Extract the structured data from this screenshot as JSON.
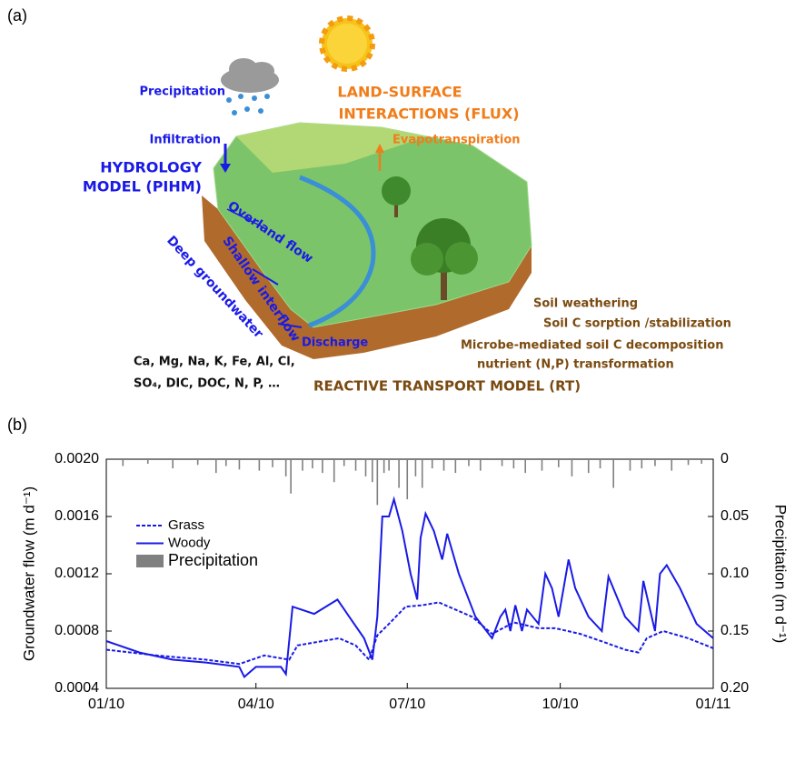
{
  "panel_a": {
    "label": "(a)",
    "precipitation": "Precipitation",
    "infiltration": "Infiltration",
    "hydrology": [
      "HYDROLOGY",
      "MODEL (PIHM)"
    ],
    "land_surface": [
      "LAND-SURFACE",
      "INTERACTIONS (FLUX)"
    ],
    "evapotranspiration": "Evapotranspiration",
    "overland_flow": "Overland flow",
    "shallow_interflow": "Shallow interflow",
    "deep_groundwater": "Deep groundwater",
    "discharge": "Discharge",
    "solutes": [
      "Ca, Mg, Na, K, Fe, Al, Cl,",
      "SO₄, DIC, DOC, N, P, …"
    ],
    "processes": [
      "Soil weathering",
      "Soil C sorption /stabilization",
      "Microbe-mediated soil C decomposition",
      "nutrient (N,P) transformation"
    ],
    "reactive_transport": "REACTIVE TRANSPORT MODEL (RT)"
  },
  "chart_data": {
    "type": "line",
    "panel_label": "(b)",
    "y_label": "Groundwater flow (m d⁻¹)",
    "y2_label": "Precipitation (m d⁻¹)",
    "xlim": [
      0,
      365
    ],
    "xticks": [
      {
        "value": 0,
        "label": "01/10"
      },
      {
        "value": 90,
        "label": "04/10"
      },
      {
        "value": 181,
        "label": "07/10"
      },
      {
        "value": 273,
        "label": "10/10"
      },
      {
        "value": 365,
        "label": "01/11"
      }
    ],
    "ylim": [
      0.0004,
      0.002
    ],
    "yticks": [
      {
        "value": 0.0004,
        "label": "0.0004"
      },
      {
        "value": 0.0008,
        "label": "0.0008"
      },
      {
        "value": 0.0012,
        "label": "0.0012"
      },
      {
        "value": 0.0016,
        "label": "0.0016"
      },
      {
        "value": 0.002,
        "label": "0.0020"
      }
    ],
    "y2lim": [
      0.2,
      0
    ],
    "y2ticks": [
      0,
      0.05,
      {
        "value": 0.1,
        "label": "0.10"
      },
      0.15,
      {
        "value": 0.2,
        "label": "0.20"
      }
    ],
    "legend": "upper left",
    "series": [
      {
        "name": "Grass",
        "color": "#1a1ae6",
        "dash": true,
        "x": [
          0,
          30,
          60,
          80,
          95,
          110,
          115,
          130,
          140,
          150,
          158,
          163,
          170,
          180,
          190,
          200,
          210,
          220,
          232,
          245,
          260,
          270,
          285,
          300,
          312,
          320,
          325,
          335,
          350,
          365
        ],
        "values": [
          0.00067,
          0.00063,
          0.0006,
          0.00057,
          0.00063,
          0.0006,
          0.0007,
          0.00073,
          0.00075,
          0.0007,
          0.0006,
          0.00077,
          0.00085,
          0.00097,
          0.00098,
          0.001,
          0.00095,
          0.0009,
          0.00078,
          0.00086,
          0.00082,
          0.00082,
          0.00078,
          0.00072,
          0.00067,
          0.00065,
          0.00075,
          0.0008,
          0.00075,
          0.00068
        ]
      },
      {
        "name": "Woody",
        "color": "#1a1ae6",
        "dash": false,
        "x": [
          0,
          20,
          40,
          60,
          80,
          83,
          90,
          105,
          108,
          112,
          125,
          139,
          155,
          160,
          163,
          166,
          170,
          173,
          178,
          183,
          187,
          189,
          192,
          197,
          202,
          205,
          212,
          222,
          232,
          237,
          240,
          243,
          246,
          250,
          253,
          260,
          264,
          268,
          272,
          278,
          282,
          290,
          298,
          302,
          312,
          320,
          323,
          330,
          333,
          337,
          345,
          355,
          365
        ],
        "values": [
          0.00073,
          0.00065,
          0.0006,
          0.00058,
          0.00055,
          0.00048,
          0.00055,
          0.00055,
          0.0005,
          0.00097,
          0.00092,
          0.00102,
          0.00075,
          0.0006,
          0.0009,
          0.0016,
          0.0016,
          0.00172,
          0.0015,
          0.0012,
          0.00102,
          0.00145,
          0.00162,
          0.0015,
          0.0013,
          0.00148,
          0.0012,
          0.0009,
          0.00075,
          0.0009,
          0.00095,
          0.0008,
          0.00098,
          0.0008,
          0.00095,
          0.00085,
          0.0012,
          0.0011,
          0.0009,
          0.0013,
          0.0011,
          0.0009,
          0.0008,
          0.00118,
          0.0009,
          0.0008,
          0.00115,
          0.0008,
          0.0012,
          0.00126,
          0.0011,
          0.00085,
          0.00075
        ]
      },
      {
        "name": "Precipitation",
        "color": "#808080",
        "kind": "bar",
        "axis": "y2",
        "x": [
          10,
          25,
          40,
          55,
          66,
          72,
          80,
          92,
          100,
          108,
          111,
          118,
          124,
          130,
          137,
          143,
          150,
          156,
          160,
          163,
          167,
          170,
          176,
          181,
          186,
          190,
          196,
          203,
          210,
          218,
          225,
          238,
          245,
          252,
          262,
          272,
          280,
          290,
          297,
          305,
          315,
          322,
          330,
          340,
          350,
          358
        ],
        "values": [
          0.006,
          0.004,
          0.008,
          0.005,
          0.012,
          0.006,
          0.009,
          0.01,
          0.007,
          0.015,
          0.03,
          0.01,
          0.008,
          0.012,
          0.02,
          0.006,
          0.01,
          0.015,
          0.02,
          0.04,
          0.012,
          0.01,
          0.025,
          0.035,
          0.015,
          0.025,
          0.008,
          0.01,
          0.012,
          0.006,
          0.01,
          0.006,
          0.008,
          0.012,
          0.01,
          0.007,
          0.015,
          0.012,
          0.008,
          0.025,
          0.01,
          0.008,
          0.006,
          0.01,
          0.005,
          0.004
        ]
      }
    ]
  }
}
